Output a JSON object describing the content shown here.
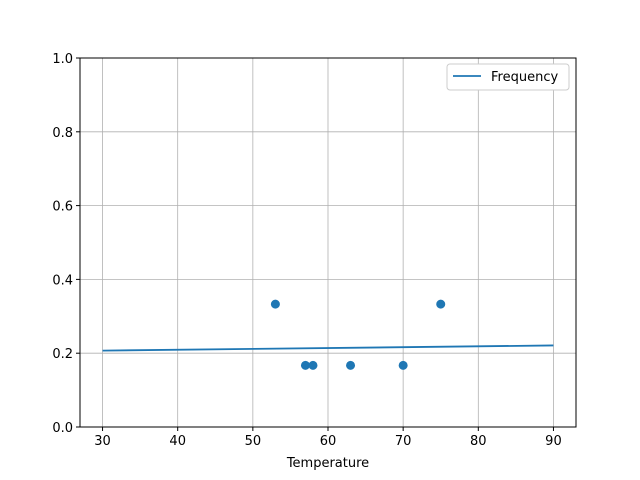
{
  "chart_data": {
    "type": "line+scatter",
    "title": "",
    "xlabel": "Temperature",
    "ylabel": "",
    "xlim": [
      27,
      93
    ],
    "ylim": [
      0,
      1
    ],
    "xticks": [
      30,
      40,
      50,
      60,
      70,
      80,
      90
    ],
    "yticks": [
      "0.0",
      "0.2",
      "0.4",
      "0.6",
      "0.8",
      "1.0"
    ],
    "grid": true,
    "legend": {
      "placement": "upper right",
      "entries": [
        "Frequency"
      ]
    },
    "color": "#1f77b4",
    "series": [
      {
        "name": "Frequency",
        "kind": "line",
        "x": [
          30,
          90
        ],
        "y": [
          0.207,
          0.221
        ]
      },
      {
        "kind": "scatter",
        "x": [
          53,
          57,
          58,
          63,
          70,
          75
        ],
        "y": [
          0.333,
          0.167,
          0.167,
          0.167,
          0.167,
          0.333
        ]
      }
    ]
  }
}
